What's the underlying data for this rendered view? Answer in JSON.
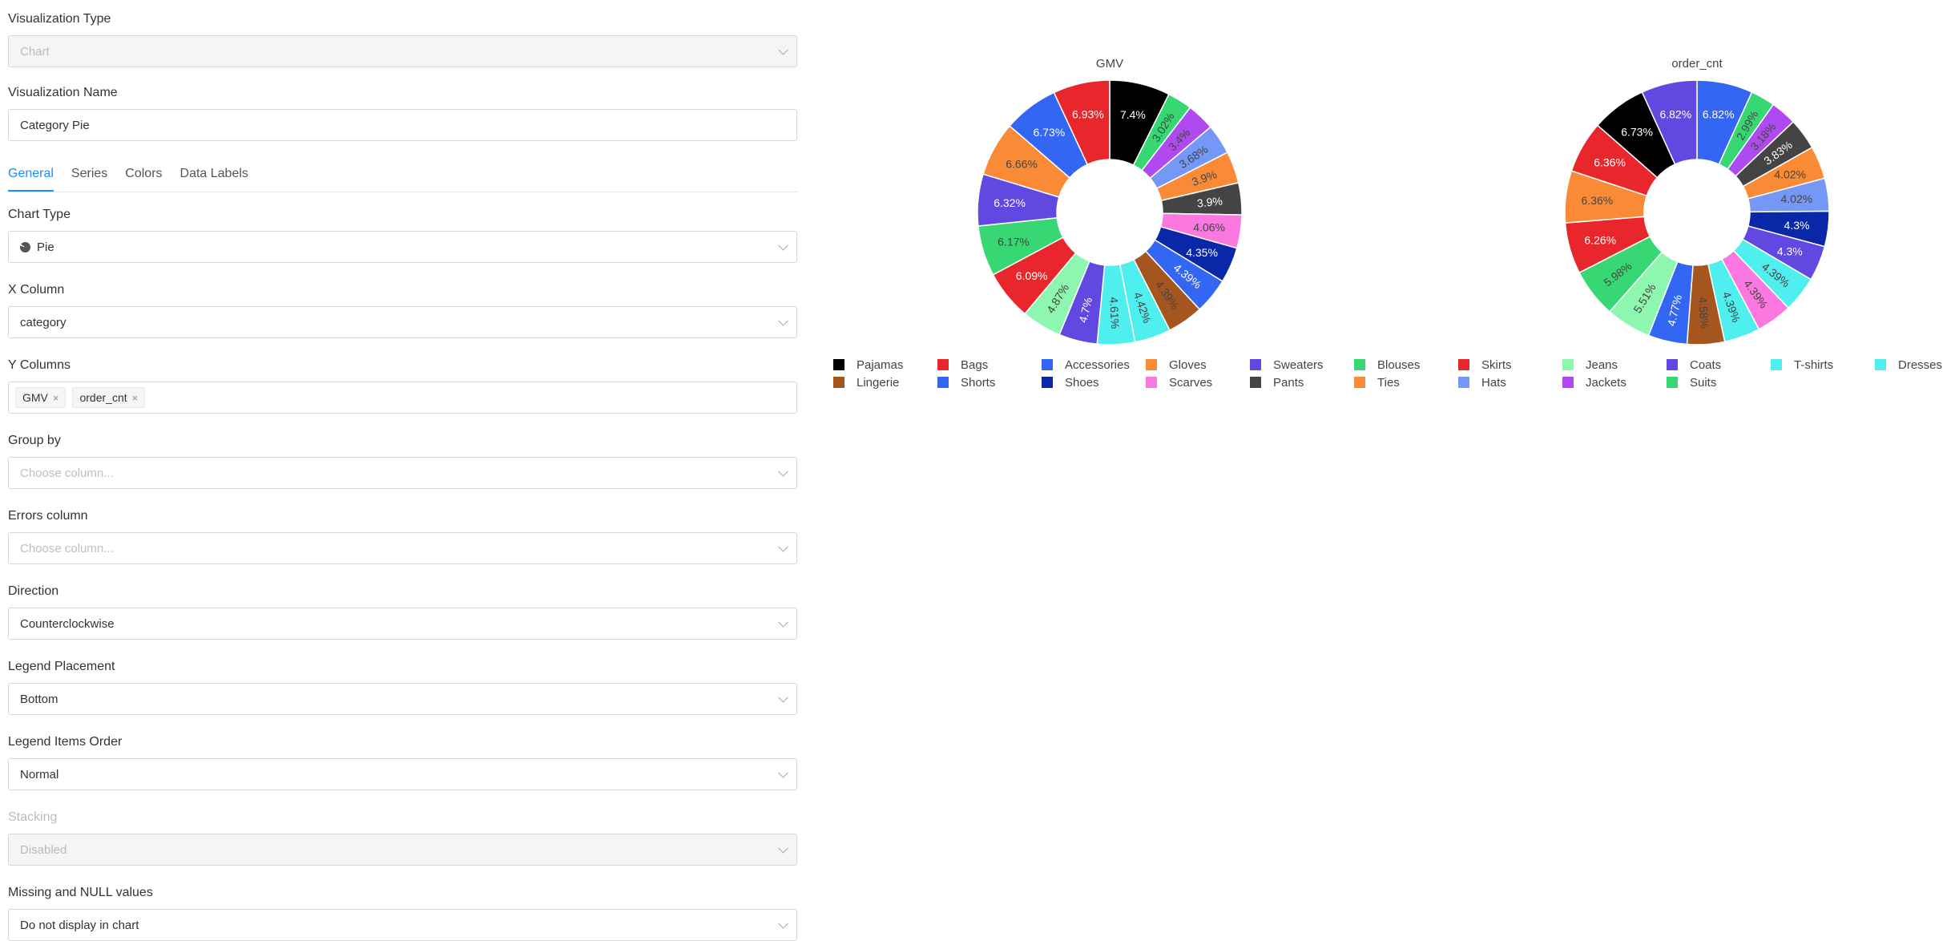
{
  "editor": {
    "viz_type": {
      "label": "Visualization Type",
      "value": "Chart"
    },
    "viz_name": {
      "label": "Visualization Name",
      "value": "Category Pie"
    },
    "tabs": [
      "General",
      "Series",
      "Colors",
      "Data Labels"
    ],
    "chart_type": {
      "label": "Chart Type",
      "value": "Pie"
    },
    "x_column": {
      "label": "X Column",
      "value": "category"
    },
    "y_columns": {
      "label": "Y Columns",
      "tags": [
        "GMV",
        "order_cnt"
      ]
    },
    "group_by": {
      "label": "Group by",
      "placeholder": "Choose column..."
    },
    "errors_column": {
      "label": "Errors column",
      "placeholder": "Choose column..."
    },
    "direction": {
      "label": "Direction",
      "value": "Counterclockwise"
    },
    "legend_placement": {
      "label": "Legend Placement",
      "value": "Bottom"
    },
    "legend_items_order": {
      "label": "Legend Items Order",
      "value": "Normal"
    },
    "stacking": {
      "label": "Stacking",
      "value": "Disabled"
    },
    "missing_null": {
      "label": "Missing and NULL values",
      "value": "Do not display in chart"
    }
  },
  "chart_data": {
    "type": "pie",
    "donut": true,
    "direction": "counterclockwise",
    "legend_placement": "bottom",
    "categories": [
      "Pajamas",
      "Bags",
      "Accessories",
      "Gloves",
      "Sweaters",
      "Blouses",
      "Skirts",
      "Jeans",
      "Coats",
      "T-shirts",
      "Dresses",
      "Lingerie",
      "Shorts",
      "Shoes",
      "Scarves",
      "Pants",
      "Ties",
      "Hats",
      "Jackets",
      "Suits"
    ],
    "colors": [
      "#000000",
      "#e8262b",
      "#3367f3",
      "#fa8b36",
      "#6148e0",
      "#37d774",
      "#e8262b",
      "#8df7b0",
      "#6148e0",
      "#4fefef",
      "#4fefef",
      "#a5551e",
      "#3367f3",
      "#0a27a8",
      "#fb78e0",
      "#444444",
      "#fa8b36",
      "#7597f5",
      "#ae4aef",
      "#37d774"
    ],
    "series": [
      {
        "name": "GMV",
        "slices": [
          {
            "category": "Pajamas",
            "value": 7.4,
            "color": "#000000"
          },
          {
            "category": "Blouses",
            "value": 3.02,
            "color": "#37d774"
          },
          {
            "category": "Jackets",
            "value": 3.4,
            "color": "#ae4aef"
          },
          {
            "category": "Hats",
            "value": 3.68,
            "color": "#7597f5"
          },
          {
            "category": "Ties",
            "value": 3.9,
            "color": "#fa8b36"
          },
          {
            "category": "Pants",
            "value": 3.9,
            "color": "#444444"
          },
          {
            "category": "Scarves",
            "value": 4.06,
            "color": "#fb78e0"
          },
          {
            "category": "Shoes",
            "value": 4.35,
            "color": "#0a27a8"
          },
          {
            "category": "Shorts",
            "value": 4.39,
            "color": "#3367f3"
          },
          {
            "category": "Lingerie",
            "value": 4.39,
            "color": "#a5551e"
          },
          {
            "category": "Dresses",
            "value": 4.42,
            "color": "#4fefef"
          },
          {
            "category": "T-shirts",
            "value": 4.61,
            "color": "#4fefef"
          },
          {
            "category": "Coats",
            "value": 4.7,
            "color": "#6148e0"
          },
          {
            "category": "Jeans",
            "value": 4.87,
            "color": "#8df7b0"
          },
          {
            "category": "Skirts",
            "value": 6.09,
            "color": "#e8262b"
          },
          {
            "category": "Suits",
            "value": 6.17,
            "color": "#37d774"
          },
          {
            "category": "Sweaters",
            "value": 6.32,
            "color": "#6148e0"
          },
          {
            "category": "Gloves",
            "value": 6.66,
            "color": "#fa8b36"
          },
          {
            "category": "Accessories",
            "value": 6.73,
            "color": "#3367f3"
          },
          {
            "category": "Bags",
            "value": 6.93,
            "color": "#e8262b"
          }
        ]
      },
      {
        "name": "order_cnt",
        "slices": [
          {
            "category": "Accessories",
            "value": 6.82,
            "color": "#3367f3"
          },
          {
            "category": "Blouses",
            "value": 2.99,
            "color": "#37d774"
          },
          {
            "category": "Jackets",
            "value": 3.18,
            "color": "#ae4aef"
          },
          {
            "category": "Pants",
            "value": 3.83,
            "color": "#444444"
          },
          {
            "category": "Ties",
            "value": 4.02,
            "color": "#fa8b36"
          },
          {
            "category": "Hats",
            "value": 4.02,
            "color": "#7597f5"
          },
          {
            "category": "Shoes",
            "value": 4.3,
            "color": "#0a27a8"
          },
          {
            "category": "Sweaters",
            "value": 4.3,
            "color": "#6148e0"
          },
          {
            "category": "T-shirts",
            "value": 4.39,
            "color": "#4fefef"
          },
          {
            "category": "Scarves",
            "value": 4.39,
            "color": "#fb78e0"
          },
          {
            "category": "Dresses",
            "value": 4.39,
            "color": "#4fefef"
          },
          {
            "category": "Lingerie",
            "value": 4.58,
            "color": "#a5551e"
          },
          {
            "category": "Shorts",
            "value": 4.77,
            "color": "#3367f3"
          },
          {
            "category": "Jeans",
            "value": 5.51,
            "color": "#8df7b0"
          },
          {
            "category": "Suits",
            "value": 5.98,
            "color": "#37d774"
          },
          {
            "category": "Skirts",
            "value": 6.26,
            "color": "#e8262b"
          },
          {
            "category": "Gloves",
            "value": 6.36,
            "color": "#fa8b36"
          },
          {
            "category": "Bags",
            "value": 6.36,
            "color": "#e8262b"
          },
          {
            "category": "Pajamas",
            "value": 6.73,
            "color": "#000000"
          },
          {
            "category": "Coats",
            "value": 6.82,
            "color": "#6148e0"
          }
        ]
      }
    ]
  }
}
